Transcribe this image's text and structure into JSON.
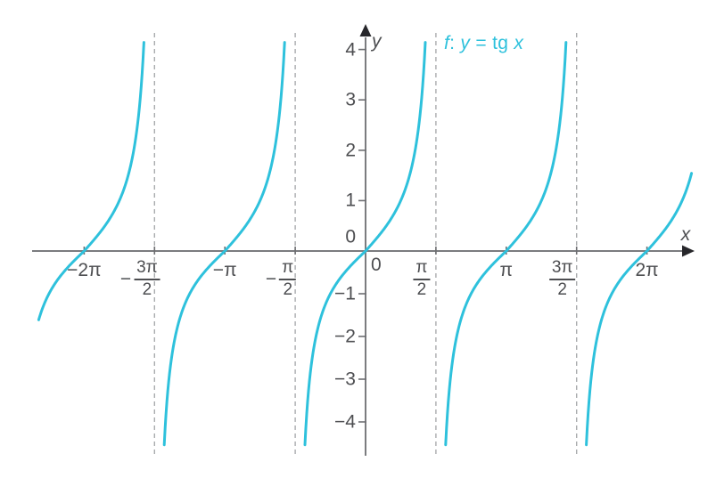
{
  "chart_data": {
    "type": "line",
    "title": "f: y = tg x",
    "title_parts": [
      {
        "text": "f",
        "italic": true
      },
      {
        "text": ": ",
        "italic": false
      },
      {
        "text": "y",
        "italic": true
      },
      {
        "text": " = tg ",
        "italic": false
      },
      {
        "text": "x",
        "italic": true
      }
    ],
    "expression": "y = tan(x)",
    "xlabel": "x",
    "ylabel": "y",
    "origin_label": "0",
    "x_domain_pi": [
      -2.33,
      2.33
    ],
    "y_plot_range": [
      -4.8,
      4.3
    ],
    "ylim_ticks": [
      -4,
      4
    ],
    "branch_centers_pi": [
      -2,
      -1,
      0,
      1,
      2
    ],
    "asymptotes_pi": [
      -1.5,
      -0.5,
      0.5,
      1.5
    ],
    "grid": "off",
    "x_ticks": [
      {
        "value_pi": -2,
        "style": "plain",
        "label": "−2π"
      },
      {
        "value_pi": -1.5,
        "style": "fraction",
        "sign": "−",
        "num": "3π",
        "den": "2"
      },
      {
        "value_pi": -1,
        "style": "plain",
        "label": "−π"
      },
      {
        "value_pi": -0.5,
        "style": "fraction",
        "sign": "−",
        "num": "π",
        "den": "2"
      },
      {
        "value_pi": 0.5,
        "style": "fraction",
        "sign": "",
        "num": "π",
        "den": "2"
      },
      {
        "value_pi": 1,
        "style": "plain",
        "label": "π"
      },
      {
        "value_pi": 1.5,
        "style": "fraction",
        "sign": "",
        "num": "3π",
        "den": "2"
      },
      {
        "value_pi": 2,
        "style": "plain",
        "label": "2π"
      }
    ],
    "y_ticks": [
      {
        "value": 4,
        "label": "4"
      },
      {
        "value": 3,
        "label": "3"
      },
      {
        "value": 2,
        "label": "2"
      },
      {
        "value": 1,
        "label": "1"
      },
      {
        "value": 0,
        "label": "0"
      },
      {
        "value": -1,
        "label": "−1"
      },
      {
        "value": -2,
        "label": "−2"
      },
      {
        "value": -3,
        "label": "−3"
      },
      {
        "value": -4,
        "label": "−4"
      }
    ],
    "colors": {
      "curve": "#2ec1dc",
      "title": "#2ec1dc",
      "axis": "#7b7c7f",
      "arrow": "#27272b",
      "tick": "#6d6e71",
      "text": "#4d4e51",
      "asymptote": "#a9abad",
      "background": "#ffffff"
    }
  }
}
